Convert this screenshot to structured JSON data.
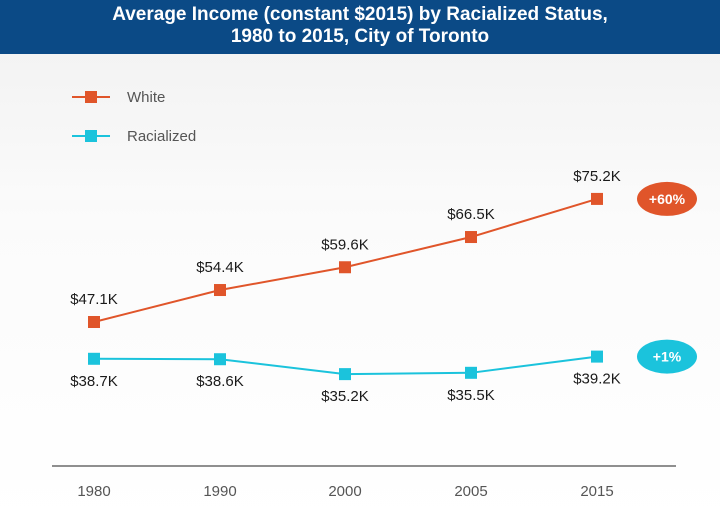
{
  "header": {
    "title_line1": "Average Income (constant $2015) by Racialized Status,",
    "title_line2": "1980 to 2015, City of Toronto"
  },
  "colors": {
    "header_bg": "#0b4a86",
    "white_series": "#e0552a",
    "racialized_series": "#1bc3dc",
    "axis": "#555555"
  },
  "chart_data": {
    "type": "line",
    "title": "Average Income (constant $2015) by Racialized Status, 1980 to 2015, City of Toronto",
    "categories": [
      "1980",
      "1990",
      "2000",
      "2005",
      "2015"
    ],
    "xlabel": "",
    "ylabel": "",
    "legend_position": "top-left",
    "grid": false,
    "series": [
      {
        "name": "White",
        "color": "#e0552a",
        "values": [
          47.1,
          54.4,
          59.6,
          66.5,
          75.2
        ],
        "labels": [
          "$47.1K",
          "$54.4K",
          "$59.6K",
          "$66.5K",
          "$75.2K"
        ],
        "label_side": "above",
        "badge": "+60%"
      },
      {
        "name": "Racialized",
        "color": "#1bc3dc",
        "values": [
          38.7,
          38.6,
          35.2,
          35.5,
          39.2
        ],
        "labels": [
          "$38.7K",
          "$38.6K",
          "$35.2K",
          "$35.5K",
          "$39.2K"
        ],
        "label_side": "below",
        "badge": "+1%"
      }
    ]
  }
}
